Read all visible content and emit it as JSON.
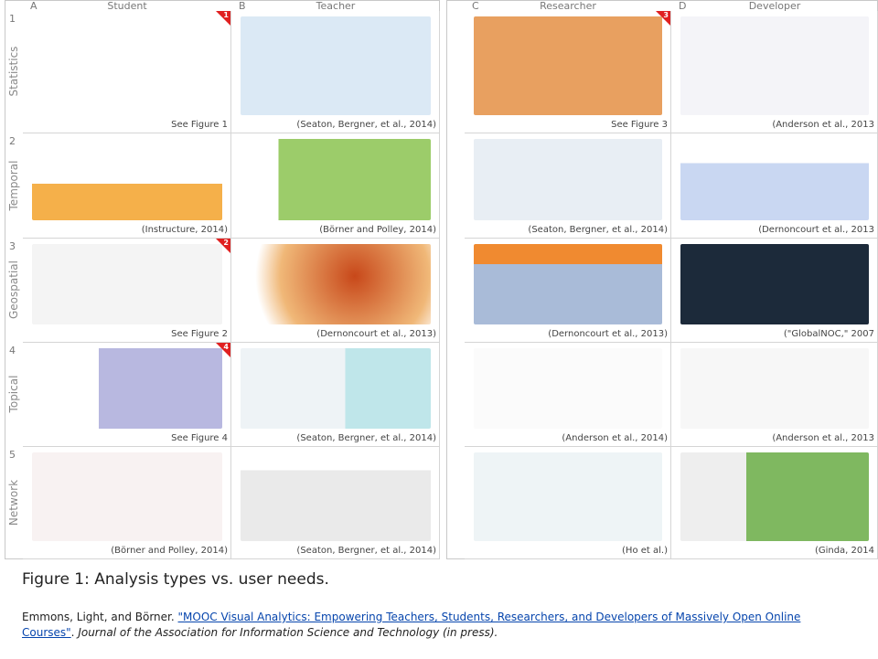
{
  "panels": [
    {
      "columns": [
        {
          "letter": "A",
          "name": "Student"
        },
        {
          "letter": "B",
          "name": "Teacher"
        }
      ]
    },
    {
      "columns": [
        {
          "letter": "C",
          "name": "Researcher"
        },
        {
          "letter": "D",
          "name": "Developer"
        }
      ]
    }
  ],
  "rows": [
    {
      "number": "1",
      "name": "Statistics",
      "cells": [
        {
          "caption": "See Figure 1",
          "badge": "1"
        },
        {
          "caption": "(Seaton, Bergner, et al., 2014)"
        },
        {
          "caption": "See Figure 3",
          "badge": "3"
        },
        {
          "caption": "(Anderson et al., 2013"
        }
      ]
    },
    {
      "number": "2",
      "name": "Temporal",
      "cells": [
        {
          "caption": "(Instructure, 2014)"
        },
        {
          "caption": "(Börner and Polley, 2014)"
        },
        {
          "caption": "(Seaton, Bergner, et al., 2014)"
        },
        {
          "caption": "(Dernoncourt et al., 2013"
        }
      ]
    },
    {
      "number": "3",
      "name": "Geospatial",
      "cells": [
        {
          "caption": "See Figure 2",
          "badge": "2"
        },
        {
          "caption": "(Dernoncourt et al., 2013)"
        },
        {
          "caption": "(Dernoncourt et al., 2013)"
        },
        {
          "caption": "(\"GlobalNOC,\" 2007"
        }
      ]
    },
    {
      "number": "4",
      "name": "Topical",
      "cells": [
        {
          "caption": "See Figure 4",
          "badge": "4"
        },
        {
          "caption": "(Seaton, Bergner, et al., 2014)"
        },
        {
          "caption": "(Anderson et al., 2014)"
        },
        {
          "caption": "(Anderson et al., 2013"
        }
      ]
    },
    {
      "number": "5",
      "name": "Network",
      "cells": [
        {
          "caption": "(Börner and Polley, 2014)"
        },
        {
          "caption": "(Seaton, Bergner, et al., 2014)"
        },
        {
          "caption": "(Ho et al.)"
        },
        {
          "caption": "(Ginda, 2014"
        }
      ]
    }
  ],
  "figure_caption": "Figure 1: Analysis types vs. user needs.",
  "reference": {
    "authors": "Emmons, Light, and Börner. ",
    "title": "\"MOOC Visual Analytics: Empowering Teachers, Students, Researchers, and Developers of Massively Open Online Courses\"",
    "separator": ". ",
    "journal": "Journal of the Association for Information Science and Technology (in press)."
  }
}
